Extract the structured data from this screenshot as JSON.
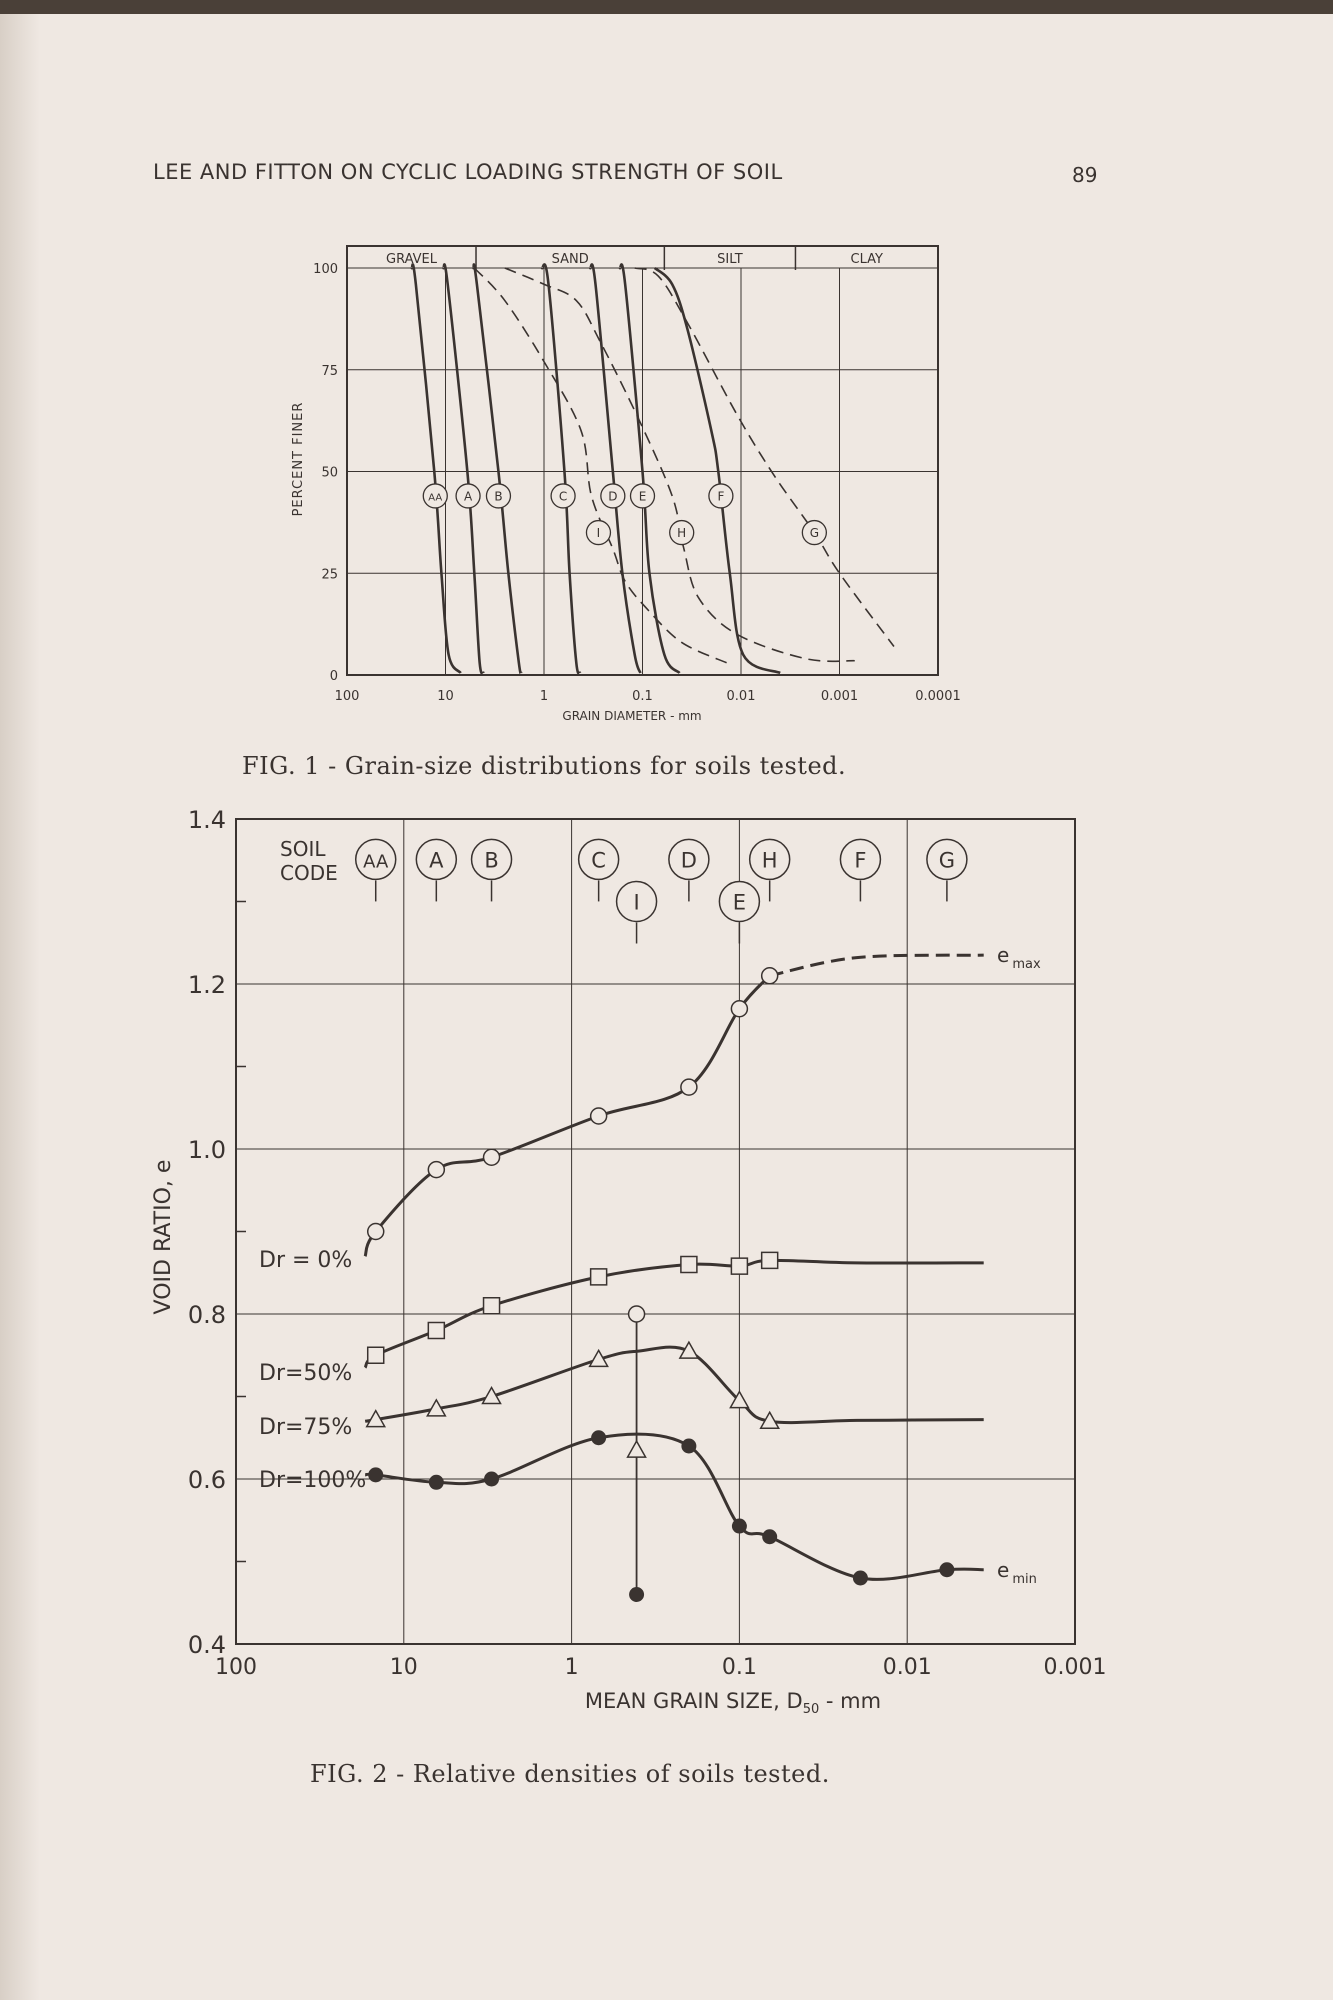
{
  "page": {
    "running_head": "LEE AND FITTON ON CYCLIC LOADING STRENGTH OF SOIL",
    "page_number": "89",
    "fig1_caption": "FIG. 1 - Grain-size distributions for soils tested.",
    "fig2_caption": "FIG. 2 - Relative densities of soils tested."
  },
  "colors": {
    "ink": "#3a3330",
    "paper": "#efe8e2"
  },
  "chart_data": [
    {
      "type": "line",
      "title": "Grain-size distributions for soils tested",
      "xlabel": "GRAIN DIAMETER - mm",
      "ylabel": "PERCENT FINER",
      "xscale": "log-reversed",
      "xlim": [
        100,
        0.0001
      ],
      "ylim": [
        0,
        100
      ],
      "x_ticks": [
        "100",
        "10",
        "1",
        "0.1",
        "0.01",
        "0.001",
        "0.0001"
      ],
      "y_ticks": [
        "0",
        "25",
        "50",
        "75",
        "100"
      ],
      "grid": true,
      "classification_bands": [
        {
          "label": "GRAVEL",
          "from": 100,
          "to": 4.9
        },
        {
          "label": "SAND",
          "from": 4.9,
          "to": 0.06
        },
        {
          "label": "SILT",
          "from": 0.06,
          "to": 0.0028
        },
        {
          "label": "CLAY",
          "from": 0.0028,
          "to": 0.0001
        }
      ],
      "series": [
        {
          "name": "AA",
          "style": "solid",
          "label_at": [
            12.7,
            44
          ],
          "points": [
            [
              22,
              100
            ],
            [
              20,
              96
            ],
            [
              13,
              50
            ],
            [
              11,
              25
            ],
            [
              9.3,
              5
            ],
            [
              7,
              0.5
            ]
          ]
        },
        {
          "name": "A",
          "style": "solid",
          "label_at": [
            5.9,
            44
          ],
          "points": [
            [
              10.5,
              100
            ],
            [
              9.5,
              96
            ],
            [
              6,
              50
            ],
            [
              5.1,
              25
            ],
            [
              4.5,
              3
            ],
            [
              4.1,
              0.5
            ]
          ]
        },
        {
          "name": "B",
          "style": "solid",
          "label_at": [
            2.9,
            44
          ],
          "points": [
            [
              5.2,
              100
            ],
            [
              4.8,
              96
            ],
            [
              2.9,
              50
            ],
            [
              2.3,
              25
            ],
            [
              1.8,
              3
            ],
            [
              1.7,
              0.5
            ]
          ]
        },
        {
          "name": "C",
          "style": "solid",
          "label_at": [
            0.64,
            44
          ],
          "points": [
            [
              1.05,
              100
            ],
            [
              0.9,
              96
            ],
            [
              0.62,
              50
            ],
            [
              0.55,
              25
            ],
            [
              0.47,
              3
            ],
            [
              0.43,
              0.5
            ]
          ]
        },
        {
          "name": "D",
          "style": "solid",
          "label_at": [
            0.2,
            44
          ],
          "points": [
            [
              0.34,
              100
            ],
            [
              0.3,
              96
            ],
            [
              0.2,
              50
            ],
            [
              0.16,
              25
            ],
            [
              0.12,
              5
            ],
            [
              0.105,
              0.5
            ]
          ]
        },
        {
          "name": "E",
          "style": "solid",
          "label_at": [
            0.1,
            44
          ],
          "points": [
            [
              0.17,
              100
            ],
            [
              0.15,
              96
            ],
            [
              0.1,
              50
            ],
            [
              0.085,
              25
            ],
            [
              0.06,
              5
            ],
            [
              0.042,
              0.5
            ]
          ]
        },
        {
          "name": "F",
          "style": "solid",
          "label_at": [
            0.016,
            44
          ],
          "points": [
            [
              0.075,
              100
            ],
            [
              0.05,
              96
            ],
            [
              0.035,
              85
            ],
            [
              0.02,
              60
            ],
            [
              0.017,
              50
            ],
            [
              0.013,
              25
            ],
            [
              0.0095,
              5
            ],
            [
              0.004,
              0.5
            ]
          ]
        },
        {
          "name": "I",
          "style": "dashed",
          "label_at": [
            0.28,
            35
          ],
          "points": [
            [
              5.1,
              100
            ],
            [
              2.5,
              92
            ],
            [
              1.0,
              77
            ],
            [
              0.42,
              60
            ],
            [
              0.33,
              44
            ],
            [
              0.2,
              31
            ],
            [
              0.15,
              23
            ],
            [
              0.088,
              16
            ],
            [
              0.04,
              8
            ],
            [
              0.014,
              3
            ]
          ]
        },
        {
          "name": "H",
          "style": "dashed",
          "label_at": [
            0.04,
            35
          ],
          "points": [
            [
              2.5,
              100
            ],
            [
              1.0,
              96
            ],
            [
              0.47,
              92
            ],
            [
              0.27,
              82
            ],
            [
              0.11,
              63
            ],
            [
              0.05,
              44
            ],
            [
              0.038,
              31
            ],
            [
              0.027,
              19
            ],
            [
              0.011,
              10
            ],
            [
              0.0022,
              4
            ],
            [
              0.0007,
              3.5
            ]
          ]
        },
        {
          "name": "G",
          "style": "dashed",
          "label_at": [
            0.0018,
            35
          ],
          "points": [
            [
              0.12,
              100
            ],
            [
              0.069,
              98
            ],
            [
              0.034,
              86
            ],
            [
              0.011,
              64
            ],
            [
              0.0046,
              49
            ],
            [
              0.0018,
              35
            ],
            [
              0.001,
              25
            ],
            [
              0.00028,
              7
            ]
          ]
        }
      ]
    },
    {
      "type": "line",
      "title": "Relative densities of soils tested",
      "xlabel": "MEAN GRAIN SIZE, D",
      "xlabel_sub": "50",
      "xlabel_unit": " - mm",
      "ylabel": "VOID RATIO, e",
      "xscale": "log-reversed",
      "xlim": [
        100,
        0.001
      ],
      "ylim": [
        0.4,
        1.4
      ],
      "x_ticks": [
        "100",
        "10",
        "1",
        "0.1",
        "0.01",
        "0.001"
      ],
      "y_ticks": [
        "0.4",
        "0.6",
        "0.8",
        "1.0",
        "1.2",
        "1.4"
      ],
      "grid": true,
      "soil_code_label": [
        "SOIL",
        "CODE"
      ],
      "soil_codes": [
        {
          "code": "AA",
          "d50": 14.7,
          "row": 0
        },
        {
          "code": "A",
          "d50": 6.4,
          "row": 0
        },
        {
          "code": "B",
          "d50": 3.0,
          "row": 0
        },
        {
          "code": "C",
          "d50": 0.69,
          "row": 0
        },
        {
          "code": "I",
          "d50": 0.41,
          "row": 1
        },
        {
          "code": "D",
          "d50": 0.2,
          "row": 0
        },
        {
          "code": "E",
          "d50": 0.1,
          "row": 1
        },
        {
          "code": "H",
          "d50": 0.066,
          "row": 0
        },
        {
          "code": "F",
          "d50": 0.019,
          "row": 0
        },
        {
          "code": "G",
          "d50": 0.0058,
          "row": 0
        }
      ],
      "series": [
        {
          "name": "Dr = 0%",
          "end_label": "e",
          "end_sub": "max",
          "marker": "open-circle",
          "dashed_from": 0.066,
          "points": [
            [
              17,
              0.87
            ],
            [
              14.7,
              0.9
            ],
            [
              6.4,
              0.975
            ],
            [
              3.0,
              0.99
            ],
            [
              0.69,
              1.04
            ],
            [
              0.2,
              1.075
            ],
            [
              0.1,
              1.17
            ],
            [
              0.066,
              1.21
            ],
            [
              0.02,
              1.232
            ],
            [
              0.0035,
              1.235
            ]
          ],
          "marked": [
            14.7,
            6.4,
            3.0,
            0.69,
            0.2,
            0.1,
            0.066
          ]
        },
        {
          "name": "Dr=50%",
          "marker": "square",
          "points": [
            [
              17,
              0.735
            ],
            [
              14.7,
              0.75
            ],
            [
              6.4,
              0.78
            ],
            [
              3.0,
              0.81
            ],
            [
              0.69,
              0.845
            ],
            [
              0.2,
              0.86
            ],
            [
              0.1,
              0.858
            ],
            [
              0.066,
              0.865
            ],
            [
              0.02,
              0.862
            ],
            [
              0.0035,
              0.862
            ]
          ],
          "marked": [
            14.7,
            6.4,
            3.0,
            0.69,
            0.2,
            0.1,
            0.066
          ]
        },
        {
          "name": "Dr=75%",
          "marker": "triangle",
          "points": [
            [
              17,
              0.67
            ],
            [
              14.7,
              0.672
            ],
            [
              6.4,
              0.685
            ],
            [
              3.0,
              0.7
            ],
            [
              0.69,
              0.745
            ],
            [
              0.4,
              0.755
            ],
            [
              0.2,
              0.755
            ],
            [
              0.1,
              0.695
            ],
            [
              0.066,
              0.67
            ],
            [
              0.02,
              0.671
            ],
            [
              0.0035,
              0.672
            ]
          ],
          "marked": [
            14.7,
            6.4,
            3.0,
            0.69,
            0.2,
            0.1,
            0.066
          ]
        },
        {
          "name": "Dr=100%",
          "end_label": "e",
          "end_sub": "min",
          "marker": "filled-circle",
          "points": [
            [
              17,
              0.605
            ],
            [
              14.7,
              0.605
            ],
            [
              6.4,
              0.596
            ],
            [
              3.0,
              0.6
            ],
            [
              0.69,
              0.65
            ],
            [
              0.2,
              0.64
            ],
            [
              0.1,
              0.543
            ],
            [
              0.066,
              0.53
            ],
            [
              0.019,
              0.48
            ],
            [
              0.0058,
              0.49
            ],
            [
              0.0035,
              0.49
            ]
          ],
          "marked": [
            14.7,
            6.4,
            3.0,
            0.69,
            0.2,
            0.1,
            0.066,
            0.019,
            0.0058
          ]
        }
      ],
      "soil_I_range": {
        "d50": 0.41,
        "emax": 0.8,
        "e75": 0.635,
        "emin": 0.46
      }
    }
  ]
}
